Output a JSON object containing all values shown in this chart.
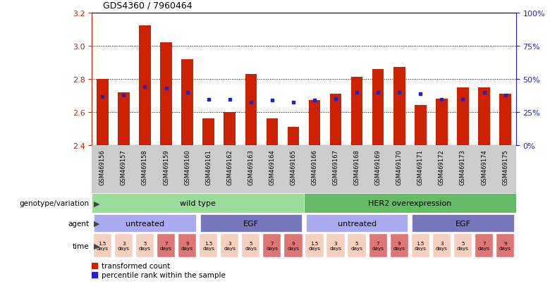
{
  "title": "GDS4360 / 7960464",
  "samples": [
    "GSM469156",
    "GSM469157",
    "GSM469158",
    "GSM469159",
    "GSM469160",
    "GSM469161",
    "GSM469162",
    "GSM469163",
    "GSM469164",
    "GSM469165",
    "GSM469166",
    "GSM469167",
    "GSM469168",
    "GSM469169",
    "GSM469170",
    "GSM469171",
    "GSM469172",
    "GSM469173",
    "GSM469174",
    "GSM469175"
  ],
  "bar_values": [
    2.8,
    2.72,
    3.12,
    3.02,
    2.92,
    2.56,
    2.6,
    2.83,
    2.56,
    2.51,
    2.67,
    2.71,
    2.81,
    2.86,
    2.87,
    2.64,
    2.68,
    2.75,
    2.75,
    2.71
  ],
  "percentile_values": [
    2.695,
    2.7,
    2.752,
    2.745,
    2.718,
    2.678,
    2.678,
    2.66,
    2.672,
    2.66,
    2.672,
    2.68,
    2.718,
    2.72,
    2.718,
    2.71,
    2.678,
    2.678,
    2.718,
    2.7
  ],
  "ylim_left": [
    2.4,
    3.2
  ],
  "ylim_right": [
    0,
    100
  ],
  "yticks_left": [
    2.4,
    2.6,
    2.8,
    3.0,
    3.2
  ],
  "yticks_right": [
    0,
    25,
    50,
    75,
    100
  ],
  "bar_color": "#cc2200",
  "dot_color": "#2222cc",
  "genotype_groups": [
    {
      "label": "wild type",
      "start": 0,
      "end": 10,
      "color": "#99dd99"
    },
    {
      "label": "HER2 overexpression",
      "start": 10,
      "end": 20,
      "color": "#66bb66"
    }
  ],
  "agent_groups": [
    {
      "label": "untreated",
      "start": 0,
      "end": 5,
      "color": "#aaaaee"
    },
    {
      "label": "EGF",
      "start": 5,
      "end": 10,
      "color": "#7777bb"
    },
    {
      "label": "untreated",
      "start": 10,
      "end": 15,
      "color": "#aaaaee"
    },
    {
      "label": "EGF",
      "start": 15,
      "end": 20,
      "color": "#7777bb"
    }
  ],
  "time_labels": [
    "1.5\ndays",
    "3\ndays",
    "5\ndays",
    "7\ndays",
    "9\ndays",
    "1.5\ndays",
    "3\ndays",
    "5\ndays",
    "7\ndays",
    "9\ndays",
    "1.5\ndays",
    "3\ndays",
    "5\ndays",
    "7\ndays",
    "9\ndays",
    "1.5\ndays",
    "3\ndays",
    "5\ndays",
    "7\ndays",
    "9\ndays"
  ],
  "time_colors": [
    "#f5d0c0",
    "#f5d0c0",
    "#f5d0c0",
    "#dd7777",
    "#dd7777",
    "#f5d0c0",
    "#f5d0c0",
    "#f5d0c0",
    "#dd7777",
    "#dd7777",
    "#f5d0c0",
    "#f5d0c0",
    "#f5d0c0",
    "#dd7777",
    "#dd7777",
    "#f5d0c0",
    "#f5d0c0",
    "#f5d0c0",
    "#dd7777",
    "#dd7777"
  ],
  "legend_bar_label": "transformed count",
  "legend_dot_label": "percentile rank within the sample",
  "row_labels": [
    "genotype/variation",
    "agent",
    "time"
  ],
  "label_bg_color": "#cccccc"
}
